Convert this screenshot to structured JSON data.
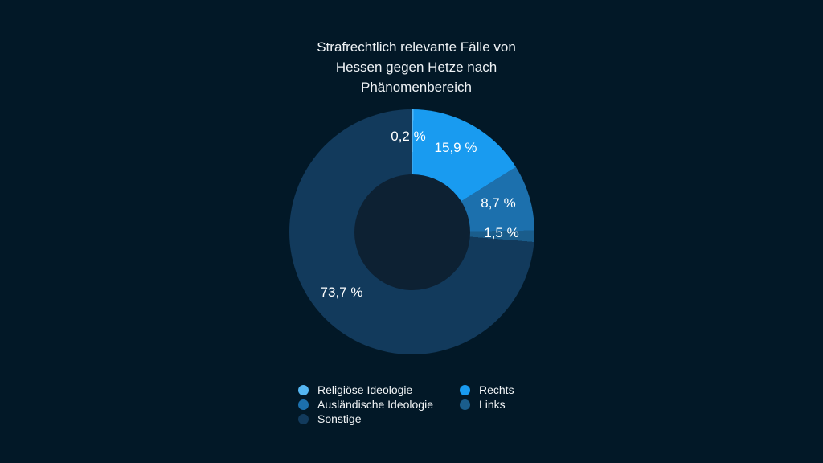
{
  "title": {
    "full": "Strafrechtlich relevante Fälle von Hessen gegen Hetze nach Phänomenbereich",
    "lines": [
      "Strafrechtlich relevante Fälle von",
      "Hessen gegen Hetze nach",
      "Phänomenbereich"
    ]
  },
  "colors": {
    "background": "#021827",
    "donut_hole": "#0D2133",
    "label_text": "#FFFFFF",
    "title_text": "#EFF3F6"
  },
  "chart_data": {
    "type": "pie",
    "donut": true,
    "inner_radius_ratio": 0.47,
    "start_angle_deg": 0,
    "direction": "clockwise",
    "title": "Strafrechtlich relevante Fälle von Hessen gegen Hetze nach Phänomenbereich",
    "unit": "%",
    "legend_position": "bottom",
    "slices": [
      {
        "name": "Religiöse Ideologie",
        "value": 0.2,
        "label": "0,2 %",
        "color": "#55B6F2"
      },
      {
        "name": "Rechts",
        "value": 15.9,
        "label": "15,9 %",
        "color": "#199BF0"
      },
      {
        "name": "Ausländische Ideologie",
        "value": 8.7,
        "label": "8,7 %",
        "color": "#1C70AD"
      },
      {
        "name": "Links",
        "value": 1.5,
        "label": "1,5 %",
        "color": "#1A5D8C"
      },
      {
        "name": "Sonstige",
        "value": 73.7,
        "label": "73,7 %",
        "color": "#123A5C"
      }
    ]
  }
}
